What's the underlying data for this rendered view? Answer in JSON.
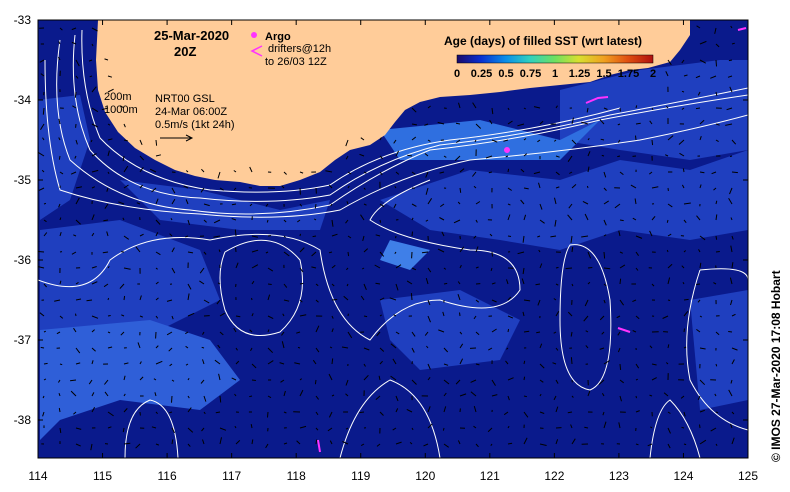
{
  "map": {
    "date": "25-Mar-2020",
    "hour": "20Z",
    "argo_label": "Argo",
    "drifters_label": "drifters@12h",
    "drifters_to": "to 26/03 12Z",
    "isobaths": [
      "200m",
      "1000m"
    ],
    "altimetry_label": "NRT00 GSL",
    "altimetry_time": "24-Mar 06:00Z",
    "vector_scale": "0.5m/s (1kt 24h)",
    "credit": "© IMOS 27-Mar-2020 17:08 Hobart",
    "lon_ticks": [
      "114",
      "115",
      "116",
      "117",
      "118",
      "119",
      "120",
      "121",
      "122",
      "123",
      "124",
      "125"
    ],
    "lat_ticks": [
      "-33",
      "-34",
      "-35",
      "-36",
      "-37",
      "-38"
    ],
    "colorbar": {
      "title": "Age (days) of filled SST (wrt latest)",
      "labels": [
        "0",
        "0.25",
        "0.5",
        "0.75",
        "1",
        "1.25",
        "1.5",
        "1.75",
        "2"
      ],
      "colors": [
        "#1a0a6a",
        "#0a2fd0",
        "#0a8fe8",
        "#2fd0c0",
        "#6fe060",
        "#d8e030",
        "#f0a020",
        "#e05010",
        "#b01010"
      ]
    },
    "colors": {
      "ocean_deep": "#0a1a8c",
      "ocean_mid": "#1f3fbf",
      "ocean_light": "#2f6fe0",
      "land": "#ffcc99",
      "contour": "#ffffff",
      "argo": "#ff33ff"
    }
  }
}
